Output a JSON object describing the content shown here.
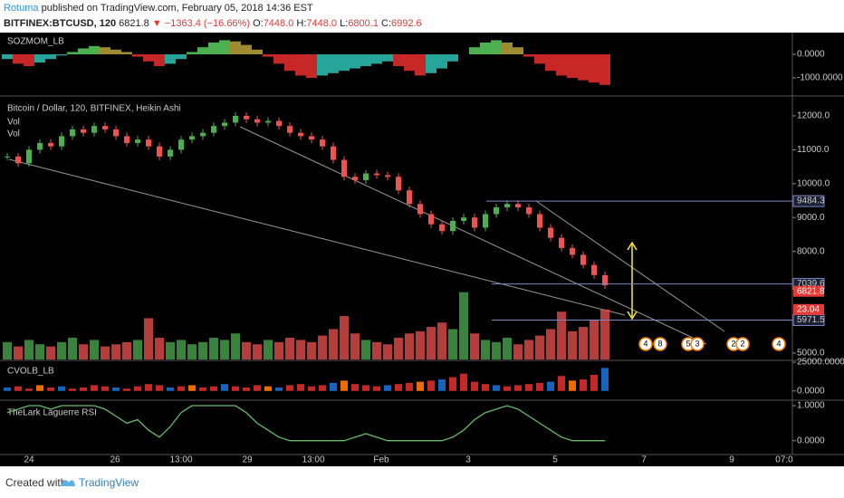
{
  "header": {
    "author": "Rotuma",
    "published": "published on TradingView.com, February 05, 2018 14:36 EST",
    "symbol": "BITFINEX:BTCUSD, 120",
    "price": "6821.8",
    "arrow": "▼",
    "change": "−1363.4 (−16.66%)",
    "ohlc": [
      {
        "label": "O:",
        "value": "7448.0"
      },
      {
        "label": "H:",
        "value": "7448.0"
      },
      {
        "label": "L:",
        "value": "6800.1"
      },
      {
        "label": "C:",
        "value": "6992.6"
      }
    ]
  },
  "footer": {
    "created": "Created with",
    "brand": "TradingView"
  },
  "x_labels": [
    "24",
    "26",
    "13:00",
    "29",
    "13:00",
    "Feb",
    "3",
    "5",
    "7",
    "9",
    "07:0"
  ],
  "events": [
    "4",
    "8",
    "5",
    "3",
    "2",
    "2",
    "4"
  ],
  "chart_data": [
    {
      "type": "oscillator",
      "title": "SOZMOM_LB",
      "ylim": [
        -1730,
        846
      ],
      "yticks": [
        {
          "value": 0,
          "label": "0.0000"
        },
        {
          "value": -1000,
          "label": "-1000.0000"
        }
      ],
      "values": [
        -200,
        -400,
        -500,
        -350,
        -200,
        -50,
        100,
        250,
        350,
        300,
        200,
        100,
        -100,
        -300,
        -500,
        -400,
        -200,
        100,
        300,
        500,
        600,
        550,
        400,
        200,
        -100,
        -400,
        -700,
        -900,
        -1000,
        -900,
        -800,
        -700,
        -600,
        -500,
        -400,
        -300,
        -500,
        -700,
        -900,
        -800,
        -600,
        -300,
        0,
        300,
        500,
        600,
        500,
        300,
        -100,
        -400,
        -700,
        -900,
        -1000,
        -1100,
        -1200,
        -1300
      ]
    },
    {
      "type": "candlestick",
      "title": "Bitcoin / Dollar, 120, BITFINEX, Heikin Ashi",
      "legend": [
        "Vol",
        "Vol"
      ],
      "ylim": [
        4810,
        12560
      ],
      "yticks": [
        {
          "value": 5000,
          "label": "5000.0"
        },
        {
          "value": 8000,
          "label": "8000.0"
        },
        {
          "value": 9000,
          "label": "9000.0"
        },
        {
          "value": 10000,
          "label": "10000.0"
        },
        {
          "value": 11000,
          "label": "11000.0"
        },
        {
          "value": 12000,
          "label": "12000.0"
        }
      ],
      "close": [
        10800,
        10600,
        11000,
        11200,
        11100,
        11400,
        11600,
        11500,
        11700,
        11600,
        11400,
        11200,
        11300,
        11100,
        10800,
        11000,
        11300,
        11400,
        11500,
        11700,
        11800,
        12000,
        11900,
        11800,
        11850,
        11700,
        11500,
        11400,
        11300,
        11100,
        10700,
        10200,
        10100,
        10300,
        10250,
        10200,
        9800,
        9400,
        9100,
        8800,
        8600,
        8900,
        9000,
        8700,
        9100,
        9300,
        9400,
        9300,
        9100,
        8700,
        8400,
        8100,
        7900,
        7600,
        7300,
        7000
      ],
      "volume": [
        8,
        6,
        9,
        7,
        6,
        8,
        10,
        7,
        9,
        6,
        7,
        8,
        9,
        19,
        10,
        8,
        9,
        7,
        8,
        10,
        9,
        12,
        8,
        7,
        9,
        8,
        10,
        9,
        8,
        11,
        14,
        20,
        12,
        9,
        8,
        7,
        10,
        12,
        13,
        15,
        17,
        14,
        31,
        12,
        9,
        8,
        10,
        7,
        9,
        11,
        14,
        22,
        13,
        15,
        18,
        23.04
      ],
      "volume_ylim": [
        0,
        121
      ],
      "levels": [
        9484.3,
        7039.6,
        5971.5
      ],
      "last_price": 6821.8,
      "last_volume": 23.04,
      "up_color": "#4caf50",
      "down_color": "#ef5350"
    },
    {
      "type": "bar",
      "title": "CVOLB_LB",
      "ylim": [
        -7260,
        25800
      ],
      "yticks": [
        {
          "value": 25000,
          "label": "25000.0000"
        },
        {
          "value": 0,
          "label": "0.0000"
        }
      ],
      "values": [
        3000,
        4000,
        2000,
        5000,
        3000,
        4000,
        2000,
        3000,
        5000,
        4000,
        3000,
        2000,
        4000,
        6000,
        5000,
        3000,
        4000,
        5000,
        3000,
        4000,
        6000,
        4000,
        3000,
        5000,
        4000,
        3000,
        5000,
        6000,
        4000,
        5000,
        7000,
        9000,
        6000,
        5000,
        4000,
        5000,
        6000,
        7000,
        8000,
        9000,
        10000,
        12000,
        15000,
        8000,
        6000,
        5000,
        4000,
        5000,
        6000,
        7000,
        8000,
        13000,
        9000,
        10000,
        14000,
        20000
      ]
    },
    {
      "type": "line",
      "title": "TheLark Laguerre RSI",
      "ylim": [
        -0.37,
        1.13
      ],
      "yticks": [
        {
          "value": 1,
          "label": "1.0000"
        },
        {
          "value": 0,
          "label": "0.0000"
        }
      ],
      "color": "#66bb6a",
      "values": [
        0.8,
        0.9,
        1,
        1,
        0.9,
        1,
        1,
        1,
        1,
        0.9,
        0.7,
        0.5,
        0.6,
        0.3,
        0.1,
        0.4,
        0.8,
        1,
        1,
        1,
        1,
        1,
        0.8,
        0.5,
        0.3,
        0.1,
        0,
        0,
        0,
        0,
        0,
        0,
        0.1,
        0.2,
        0.1,
        0,
        0,
        0,
        0,
        0,
        0,
        0.1,
        0.3,
        0.6,
        0.8,
        0.9,
        1,
        0.9,
        0.7,
        0.5,
        0.3,
        0.1,
        0,
        0,
        0,
        0
      ]
    }
  ]
}
